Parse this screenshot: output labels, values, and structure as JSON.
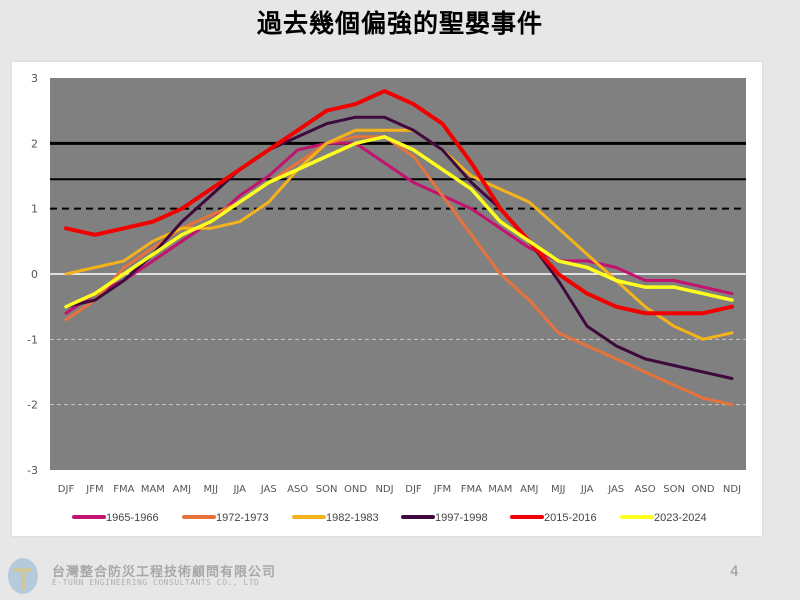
{
  "title": "過去幾個偏強的聖嬰事件",
  "footer": {
    "company_cn": "台灣整合防災工程技術顧問有限公司",
    "company_en": "E-TURN ENGINEERING CONSULTANTS CO., LTD",
    "page_number": "4"
  },
  "chart_data": {
    "type": "line",
    "title": "",
    "xlabel": "",
    "ylabel": "",
    "categories": [
      "DJF",
      "JFM",
      "FMA",
      "MAM",
      "AMJ",
      "MJJ",
      "JJA",
      "JAS",
      "ASO",
      "SON",
      "OND",
      "NDJ",
      "DJF",
      "JFM",
      "FMA",
      "MAM",
      "AMJ",
      "MJJ",
      "JJA",
      "JAS",
      "ASO",
      "SON",
      "OND",
      "NDJ"
    ],
    "ylim": [
      -3,
      3
    ],
    "yticks": [
      3,
      2,
      1,
      0,
      -1,
      -2,
      -3
    ],
    "plot_background": "#808080",
    "grid": "dashed at -1 and -2, white line at 0",
    "reference_lines": [
      {
        "value": 2.0,
        "style": "solid-thick",
        "color": "#000000"
      },
      {
        "value": 1.45,
        "style": "solid",
        "color": "#000000"
      },
      {
        "value": 1.0,
        "style": "dashed",
        "color": "#000000"
      }
    ],
    "legend_position": "bottom",
    "series": [
      {
        "name": "1965-1966",
        "color": "#c2136f",
        "values": [
          -0.6,
          -0.3,
          -0.1,
          0.2,
          0.5,
          0.8,
          1.2,
          1.5,
          1.9,
          2.0,
          2.0,
          1.7,
          1.4,
          1.2,
          1.0,
          0.7,
          0.4,
          0.2,
          0.2,
          0.1,
          -0.1,
          -0.1,
          -0.2,
          -0.3
        ]
      },
      {
        "name": "1972-1973",
        "color": "#e5733b",
        "values": [
          -0.7,
          -0.4,
          0.1,
          0.4,
          0.7,
          0.9,
          1.1,
          1.4,
          1.7,
          2.0,
          2.1,
          2.1,
          1.8,
          1.2,
          0.6,
          0.0,
          -0.4,
          -0.9,
          -1.1,
          -1.3,
          -1.5,
          -1.7,
          -1.9,
          -2.0
        ]
      },
      {
        "name": "1982-1983",
        "color": "#f5b31b",
        "values": [
          0.0,
          0.1,
          0.2,
          0.5,
          0.7,
          0.7,
          0.8,
          1.1,
          1.6,
          2.0,
          2.2,
          2.2,
          2.2,
          1.9,
          1.5,
          1.3,
          1.1,
          0.7,
          0.3,
          -0.1,
          -0.5,
          -0.8,
          -1.0,
          -0.9
        ]
      },
      {
        "name": "1997-1998",
        "color": "#3e0a3e",
        "values": [
          -0.5,
          -0.4,
          -0.1,
          0.3,
          0.8,
          1.2,
          1.6,
          1.9,
          2.1,
          2.3,
          2.4,
          2.4,
          2.2,
          1.9,
          1.4,
          1.0,
          0.5,
          -0.1,
          -0.8,
          -1.1,
          -1.3,
          -1.4,
          -1.5,
          -1.6
        ]
      },
      {
        "name": "2015-2016",
        "color": "#f20000",
        "values": [
          0.7,
          0.6,
          0.7,
          0.8,
          1.0,
          1.3,
          1.6,
          1.9,
          2.2,
          2.5,
          2.6,
          2.8,
          2.6,
          2.3,
          1.7,
          1.0,
          0.5,
          0.0,
          -0.3,
          -0.5,
          -0.6,
          -0.6,
          -0.6,
          -0.5
        ]
      },
      {
        "name": "2023-2024",
        "color": "#ffff1e",
        "values": [
          -0.5,
          -0.3,
          0.0,
          0.3,
          0.6,
          0.8,
          1.1,
          1.4,
          1.6,
          1.8,
          2.0,
          2.1,
          1.9,
          1.6,
          1.3,
          0.8,
          0.5,
          0.2,
          0.1,
          -0.1,
          -0.2,
          -0.2,
          -0.3,
          -0.4
        ]
      }
    ]
  }
}
